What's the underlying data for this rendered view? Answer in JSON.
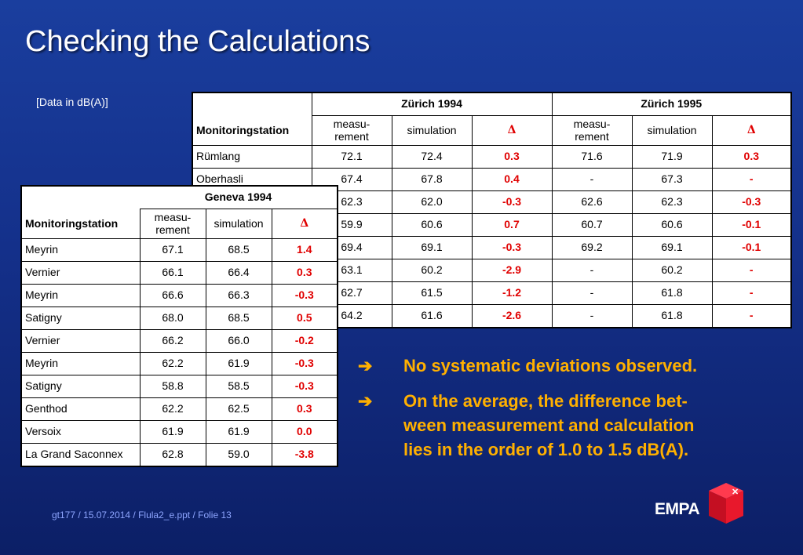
{
  "title": "Checking the Calculations",
  "unit_note": "[Data in dB(A)]",
  "zurich_table": {
    "group_1994": "Zürich 1994",
    "group_1995": "Zürich 1995",
    "col_station": "Monitoringstation",
    "col_measurement_1": "measu-",
    "col_measurement_2": "rement",
    "col_simulation": "simulation",
    "col_delta": "Δ",
    "rows": [
      {
        "station": "Rümlang",
        "m94": "72.1",
        "s94": "72.4",
        "d94": "0.3",
        "m95": "71.6",
        "s95": "71.9",
        "d95": "0.3"
      },
      {
        "station": "Oberhasli",
        "m94": "67.4",
        "s94": "67.8",
        "d94": "0.4",
        "m95": "-",
        "s95": "67.3",
        "d95": "-"
      },
      {
        "station": "",
        "m94": "62.3",
        "s94": "62.0",
        "d94": "-0.3",
        "m95": "62.6",
        "s95": "62.3",
        "d95": "-0.3"
      },
      {
        "station": "",
        "m94": "59.9",
        "s94": "60.6",
        "d94": "0.7",
        "m95": "60.7",
        "s95": "60.6",
        "d95": "-0.1"
      },
      {
        "station": "",
        "m94": "69.4",
        "s94": "69.1",
        "d94": "-0.3",
        "m95": "69.2",
        "s95": "69.1",
        "d95": "-0.1"
      },
      {
        "station": "",
        "m94": "63.1",
        "s94": "60.2",
        "d94": "-2.9",
        "m95": "-",
        "s95": "60.2",
        "d95": "-"
      },
      {
        "station": "",
        "m94": "62.7",
        "s94": "61.5",
        "d94": "-1.2",
        "m95": "-",
        "s95": "61.8",
        "d95": "-"
      },
      {
        "station": "",
        "m94": "64.2",
        "s94": "61.6",
        "d94": "-2.6",
        "m95": "-",
        "s95": "61.8",
        "d95": "-"
      }
    ]
  },
  "geneva_table": {
    "group": "Geneva 1994",
    "col_station": "Monitoringstation",
    "col_measurement_1": "measu-",
    "col_measurement_2": "rement",
    "col_simulation": "simulation",
    "col_delta": "Δ",
    "rows": [
      {
        "station": "Meyrin",
        "m": "67.1",
        "s": "68.5",
        "d": "1.4"
      },
      {
        "station": "Vernier",
        "m": "66.1",
        "s": "66.4",
        "d": "0.3"
      },
      {
        "station": "Meyrin",
        "m": "66.6",
        "s": "66.3",
        "d": "-0.3"
      },
      {
        "station": "Satigny",
        "m": "68.0",
        "s": "68.5",
        "d": "0.5"
      },
      {
        "station": "Vernier",
        "m": "66.2",
        "s": "66.0",
        "d": "-0.2"
      },
      {
        "station": "Meyrin",
        "m": "62.2",
        "s": "61.9",
        "d": "-0.3"
      },
      {
        "station": "Satigny",
        "m": "58.8",
        "s": "58.5",
        "d": "-0.3"
      },
      {
        "station": "Genthod",
        "m": "62.2",
        "s": "62.5",
        "d": "0.3"
      },
      {
        "station": "Versoix",
        "m": "61.9",
        "s": "61.9",
        "d": "0.0"
      },
      {
        "station": "La Grand Saconnex",
        "m": "62.8",
        "s": "59.0",
        "d": "-3.8"
      }
    ]
  },
  "bullets": [
    {
      "arrow": "➔",
      "lines": [
        "No systematic deviations observed."
      ]
    },
    {
      "arrow": "➔",
      "lines": [
        "On the average, the difference bet-",
        "ween measurement and calculation",
        "lies in the order of 1.0 to 1.5 dB(A)."
      ]
    }
  ],
  "footer": "gt177 / 15.07.2014 / Flula2_e.ppt / Folie 13",
  "logo": {
    "text": "EMPA",
    "icon": "empa-cube-logo",
    "cube_color": "#e8182c"
  },
  "colors": {
    "background": "#14308a",
    "title": "#ffffff",
    "bullet_text": "#ffb000",
    "delta_text": "#e00000",
    "footer": "#8ea6ff"
  }
}
